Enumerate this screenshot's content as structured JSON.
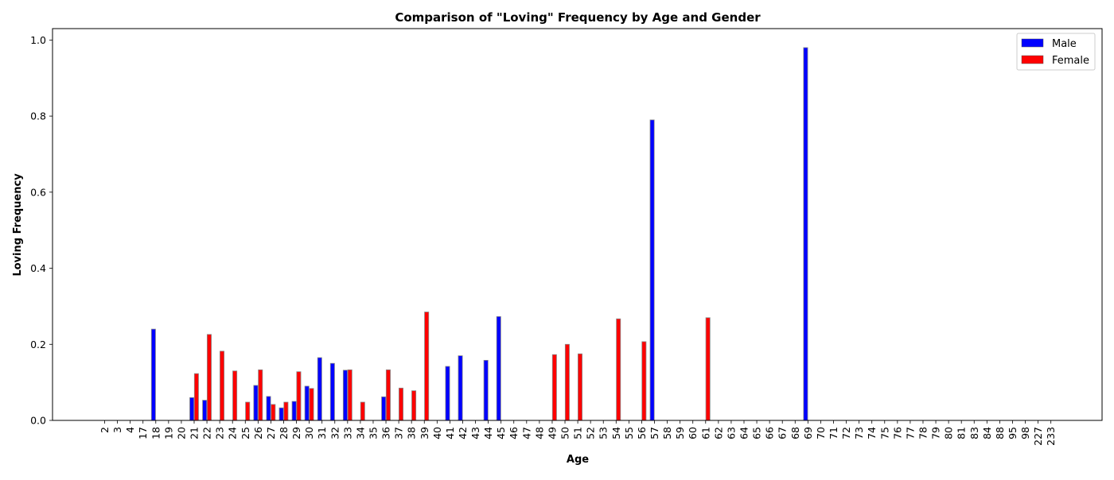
{
  "chart_data": {
    "type": "bar",
    "title": "Comparison of \"Loving\" Frequency by Age and Gender",
    "xlabel": "Age",
    "ylabel": "Loving Frequency",
    "ylim": [
      0,
      1.03
    ],
    "yticks": [
      0.0,
      0.2,
      0.4,
      0.6,
      0.8,
      1.0
    ],
    "ytick_labels": [
      "0.0",
      "0.2",
      "0.4",
      "0.6",
      "0.8",
      "1.0"
    ],
    "grid": false,
    "legend_position": "top-right",
    "categories": [
      "2",
      "3",
      "4",
      "17",
      "18",
      "19",
      "20",
      "21",
      "22",
      "23",
      "24",
      "25",
      "26",
      "27",
      "28",
      "29",
      "30",
      "31",
      "32",
      "33",
      "34",
      "35",
      "36",
      "37",
      "38",
      "39",
      "40",
      "41",
      "42",
      "43",
      "44",
      "45",
      "46",
      "47",
      "48",
      "49",
      "50",
      "51",
      "52",
      "53",
      "54",
      "55",
      "56",
      "57",
      "58",
      "59",
      "60",
      "61",
      "62",
      "63",
      "64",
      "65",
      "66",
      "67",
      "68",
      "69",
      "70",
      "71",
      "72",
      "73",
      "74",
      "75",
      "76",
      "77",
      "78",
      "79",
      "80",
      "81",
      "83",
      "84",
      "88",
      "95",
      "98",
      "227",
      "233"
    ],
    "series": [
      {
        "name": "Male",
        "color": "#0000ff",
        "values": [
          0,
          0,
          0,
          0,
          0.24,
          0,
          0,
          0.06,
          0.053,
          0,
          0,
          0,
          0.092,
          0.063,
          0.033,
          0.05,
          0.09,
          0.165,
          0.15,
          0.132,
          0,
          0,
          0.062,
          0,
          0,
          0,
          0,
          0.142,
          0.17,
          0,
          0.158,
          0.273,
          0,
          0,
          0,
          0,
          0,
          0,
          0,
          0,
          0,
          0,
          0,
          0.79,
          0,
          0,
          0,
          0,
          0,
          0,
          0,
          0,
          0,
          0,
          0,
          0.98,
          0,
          0,
          0,
          0,
          0,
          0,
          0,
          0,
          0,
          0,
          0,
          0,
          0,
          0,
          0,
          0,
          0,
          0,
          0
        ]
      },
      {
        "name": "Female",
        "color": "#ff0000",
        "values": [
          0,
          0,
          0,
          0,
          0,
          0,
          0,
          0.123,
          0.226,
          0.182,
          0.13,
          0.048,
          0.133,
          0.042,
          0.048,
          0.128,
          0.084,
          0,
          0,
          0.133,
          0.048,
          0,
          0.133,
          0.085,
          0.078,
          0.285,
          0,
          0,
          0,
          0,
          0,
          0,
          0,
          0,
          0,
          0.173,
          0.2,
          0.175,
          0,
          0,
          0.267,
          0,
          0.207,
          0,
          0,
          0,
          0,
          0.27,
          0,
          0,
          0,
          0,
          0,
          0,
          0,
          0,
          0,
          0,
          0,
          0,
          0,
          0,
          0,
          0,
          0,
          0,
          0,
          0,
          0,
          0,
          0,
          0,
          0,
          0,
          0
        ]
      }
    ]
  }
}
